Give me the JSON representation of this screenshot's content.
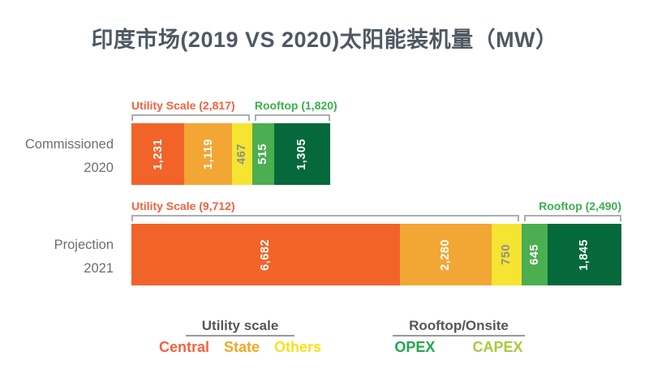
{
  "title": "印度市场(2019 VS 2020)太阳能装机量（MW）",
  "colors": {
    "central": "#F26329",
    "state": "#F2A634",
    "others": "#F5E431",
    "opex": "#4BAE50",
    "capex": "#05693B",
    "utility_label": "#F4613E",
    "rooftop_label": "#3BAF4C",
    "legend_central": "#F4623F",
    "legend_state": "#F7A623",
    "legend_others": "#FFDE17",
    "legend_opex": "#21A84D",
    "legend_capex": "#A9CA3D",
    "text_on_yellow": "#8D8F8B",
    "text_on_dark": "#FFFFFF",
    "title_text": "#4E5963",
    "row_label_text": "#6D6E71",
    "bracket": "#ABADB0"
  },
  "chart_data": {
    "type": "bar",
    "variant": "horizontal-stacked",
    "unit": "MW",
    "title": "印度市场(2019 VS 2020)太阳能装机量（MW）",
    "legend_position": "bottom",
    "rows": [
      {
        "label_line1": "Commissioned",
        "label_line2": "2020",
        "groups": {
          "utility": {
            "label": "Utility Scale (2,817)",
            "total": 2817,
            "color_key": "utility_label"
          },
          "rooftop": {
            "label": "Rooftop (1,820)",
            "total": 1820,
            "color_key": "rooftop_label"
          }
        },
        "segments": [
          {
            "name": "Central",
            "group": "utility",
            "value": 1231,
            "label": "1,231",
            "color_key": "central"
          },
          {
            "name": "State",
            "group": "utility",
            "value": 1119,
            "label": "1,119",
            "color_key": "state"
          },
          {
            "name": "Others",
            "group": "utility",
            "value": 467,
            "label": "467",
            "color_key": "others"
          },
          {
            "name": "OPEX",
            "group": "rooftop",
            "value": 515,
            "label": "515",
            "color_key": "opex"
          },
          {
            "name": "CAPEX",
            "group": "rooftop",
            "value": 1305,
            "label": "1,305",
            "color_key": "capex"
          }
        ]
      },
      {
        "label_line1": "Projection",
        "label_line2": "2021",
        "groups": {
          "utility": {
            "label": "Utility Scale (9,712)",
            "total": 9712,
            "color_key": "utility_label"
          },
          "rooftop": {
            "label": "Rooftop (2,490)",
            "total": 2490,
            "color_key": "rooftop_label"
          }
        },
        "segments": [
          {
            "name": "Central",
            "group": "utility",
            "value": 6682,
            "label": "6,682",
            "color_key": "central"
          },
          {
            "name": "State",
            "group": "utility",
            "value": 2280,
            "label": "2,280",
            "color_key": "state"
          },
          {
            "name": "Others",
            "group": "utility",
            "value": 750,
            "label": "750",
            "color_key": "others"
          },
          {
            "name": "OPEX",
            "group": "rooftop",
            "value": 645,
            "label": "645",
            "color_key": "opex"
          },
          {
            "name": "CAPEX",
            "group": "rooftop",
            "value": 1845,
            "label": "1,845",
            "color_key": "capex"
          }
        ]
      }
    ]
  },
  "legend": {
    "groups": [
      {
        "title": "Utility scale",
        "items": [
          {
            "label": "Central",
            "color_key": "legend_central"
          },
          {
            "label": "State",
            "color_key": "legend_state"
          },
          {
            "label": "Others",
            "color_key": "legend_others"
          }
        ]
      },
      {
        "title": "Rooftop/Onsite",
        "items": [
          {
            "label": "OPEX",
            "color_key": "legend_opex"
          },
          {
            "label": "CAPEX",
            "color_key": "legend_capex"
          }
        ]
      }
    ]
  }
}
